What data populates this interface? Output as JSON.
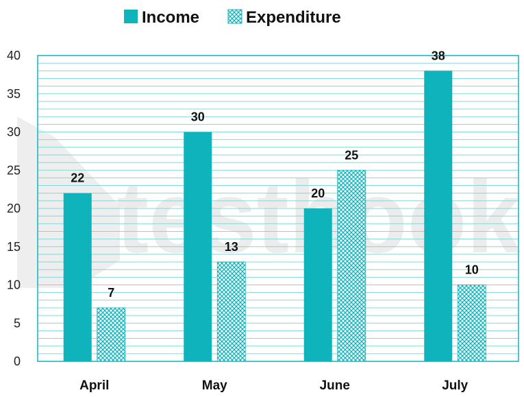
{
  "chart_data": {
    "type": "bar",
    "categories": [
      "April",
      "May",
      "June",
      "July"
    ],
    "series": [
      {
        "name": "Income",
        "values": [
          22,
          30,
          20,
          38
        ],
        "color": "#0fb3bb",
        "pattern": "solid"
      },
      {
        "name": "Expenditure",
        "values": [
          7,
          13,
          25,
          10
        ],
        "color": "#0fb3bb",
        "pattern": "crosshatch"
      }
    ],
    "ylim": [
      0,
      40
    ],
    "yticks": [
      0,
      5,
      10,
      15,
      20,
      25,
      30,
      35,
      40
    ],
    "grid": true,
    "legend_position": "top",
    "data_labels": true
  },
  "watermark": "testbook",
  "colors": {
    "grid": "#7fd8dd",
    "axis": "#0fb3bb",
    "watermark": "#ebebeb"
  }
}
